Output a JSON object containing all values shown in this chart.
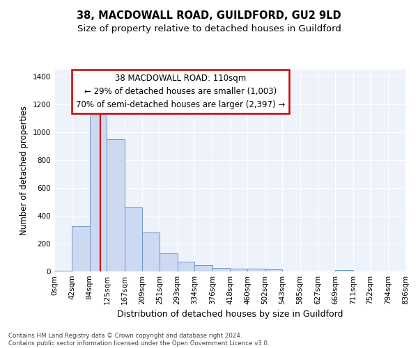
{
  "title": "38, MACDOWALL ROAD, GUILDFORD, GU2 9LD",
  "subtitle": "Size of property relative to detached houses in Guildford",
  "xlabel": "Distribution of detached houses by size in Guildford",
  "ylabel": "Number of detached properties",
  "bin_labels": [
    "0sqm",
    "42sqm",
    "84sqm",
    "125sqm",
    "167sqm",
    "209sqm",
    "251sqm",
    "293sqm",
    "334sqm",
    "376sqm",
    "418sqm",
    "460sqm",
    "502sqm",
    "543sqm",
    "585sqm",
    "627sqm",
    "669sqm",
    "711sqm",
    "752sqm",
    "794sqm",
    "836sqm"
  ],
  "bin_edges": [
    0,
    42,
    84,
    125,
    167,
    209,
    251,
    293,
    334,
    376,
    418,
    460,
    502,
    543,
    585,
    627,
    669,
    711,
    752,
    794,
    836
  ],
  "bar_heights": [
    5,
    325,
    1120,
    950,
    460,
    280,
    130,
    70,
    45,
    25,
    20,
    20,
    15,
    0,
    0,
    0,
    8,
    0,
    0,
    0,
    0
  ],
  "bar_facecolor": "#ccd9f0",
  "bar_edgecolor": "#7096cc",
  "bar_linewidth": 0.7,
  "vline_x": 110,
  "vline_color": "#cc0000",
  "vline_linewidth": 1.5,
  "annotation_text": "38 MACDOWALL ROAD: 110sqm\n← 29% of detached houses are smaller (1,003)\n70% of semi-detached houses are larger (2,397) →",
  "box_edgecolor": "#cc0000",
  "box_facecolor": "white",
  "ylim": [
    0,
    1450
  ],
  "yticks": [
    0,
    200,
    400,
    600,
    800,
    1000,
    1200,
    1400
  ],
  "bg_color": "#eef2fb",
  "grid_color": "white",
  "footnote": "Contains HM Land Registry data © Crown copyright and database right 2024.\nContains public sector information licensed under the Open Government Licence v3.0.",
  "title_fontsize": 10.5,
  "subtitle_fontsize": 9.5,
  "xlabel_fontsize": 9,
  "ylabel_fontsize": 8.5,
  "tick_fontsize": 7.5,
  "annotation_fontsize": 8.5,
  "footnote_fontsize": 6.2
}
